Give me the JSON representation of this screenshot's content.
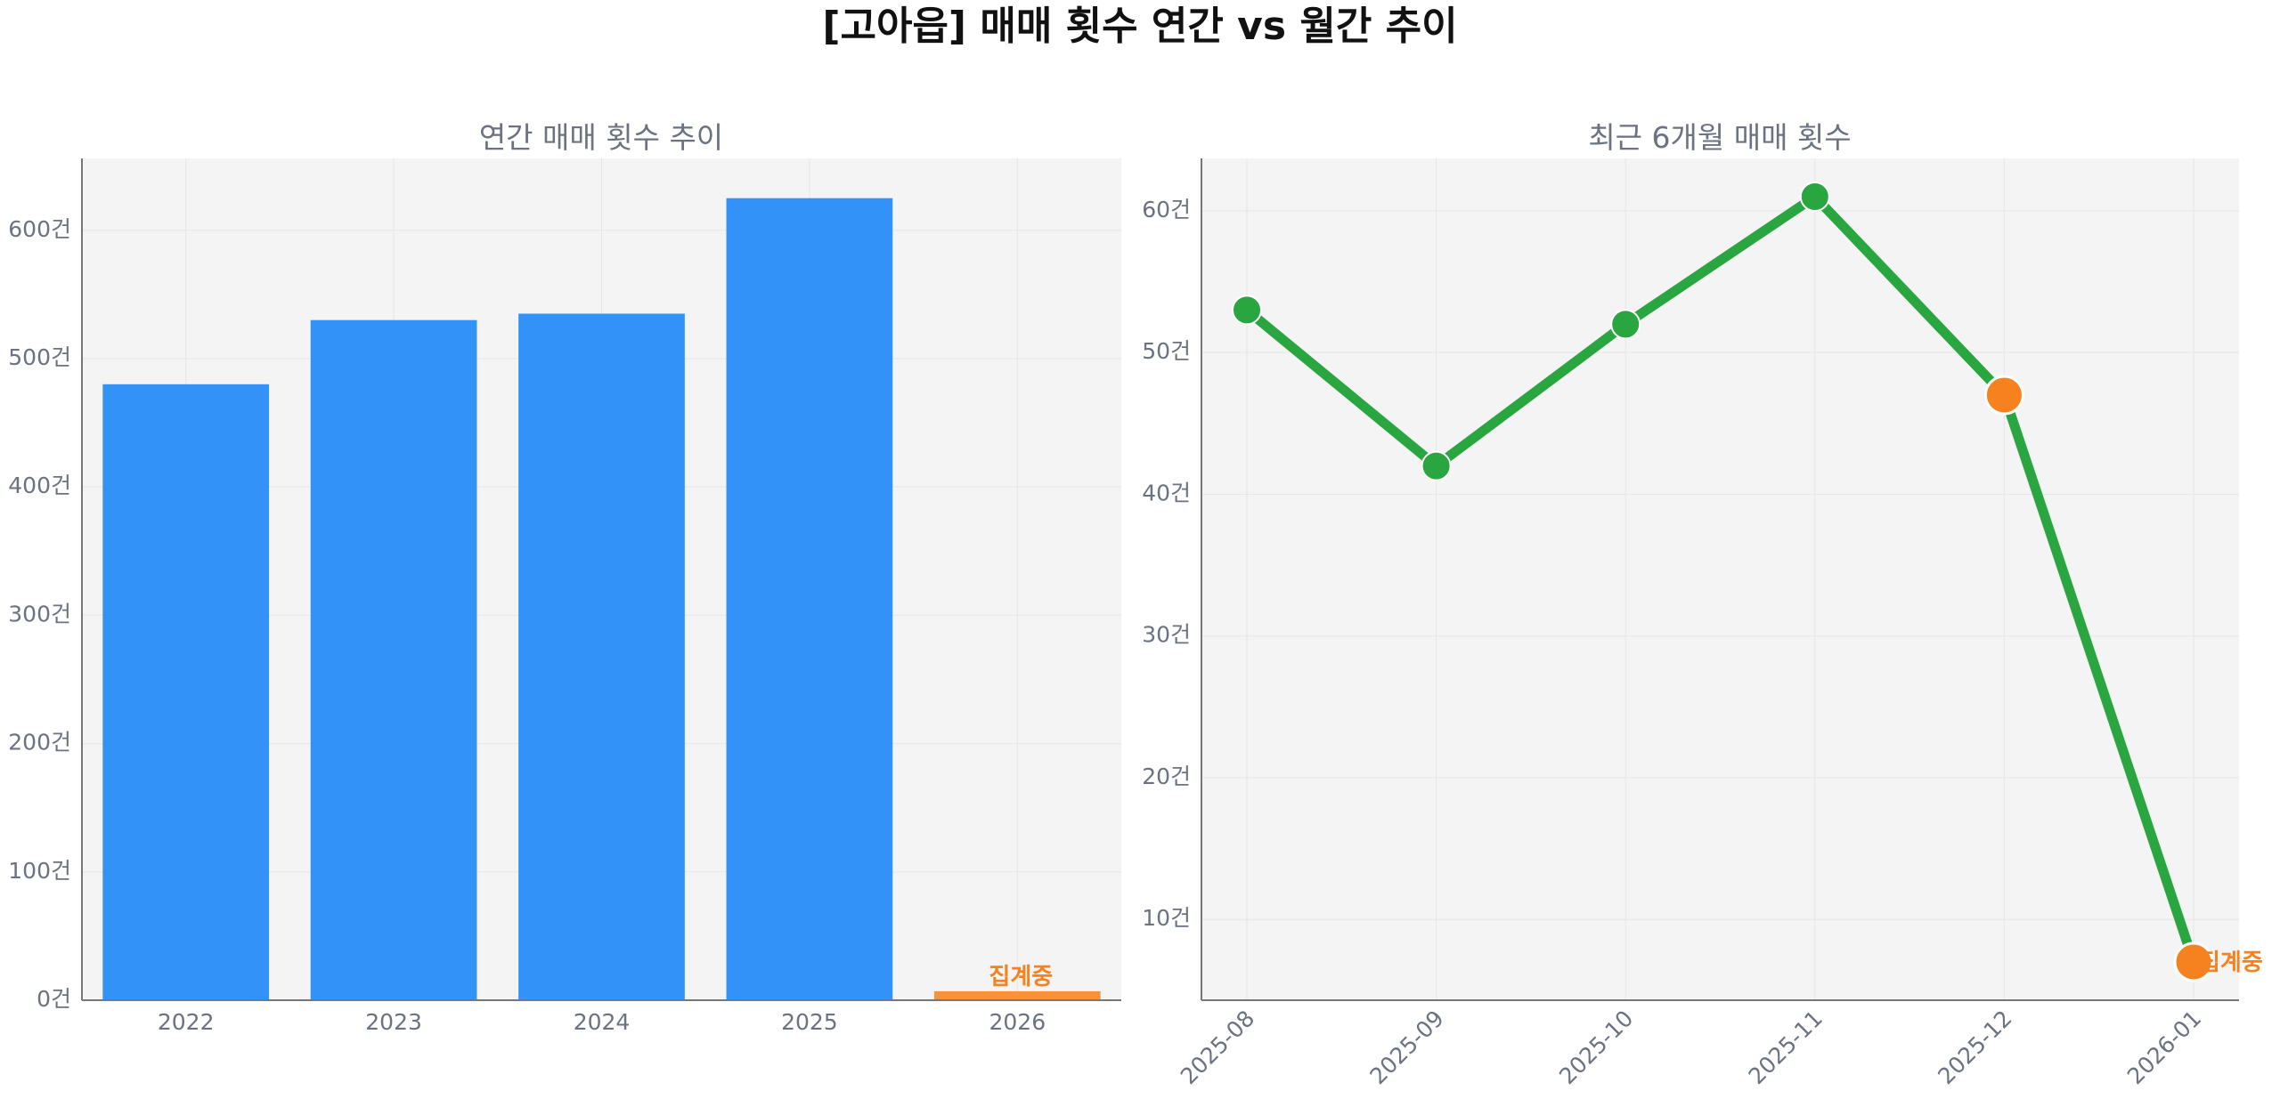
{
  "title": "[고아읍] 매매 횟수 연간 vs 월간 추이",
  "colors": {
    "bar": "#3292f8",
    "bar_partial": "#f5933e",
    "line": "#2aa640",
    "point_partial": "#f5821f",
    "note": "#f58220"
  },
  "chart_data": [
    {
      "type": "bar",
      "title": "연간 매매 횟수 추이",
      "categories": [
        "2022",
        "2023",
        "2024",
        "2025",
        "2026"
      ],
      "values": [
        480,
        530,
        535,
        625,
        7
      ],
      "partial_index": 4,
      "partial_label": "집계중",
      "ylim": [
        0,
        656
      ],
      "yticks": [
        0,
        100,
        200,
        300,
        400,
        500,
        600
      ],
      "ytick_labels": [
        "0건",
        "100건",
        "200건",
        "300건",
        "400건",
        "500건",
        "600건"
      ],
      "grid": true
    },
    {
      "type": "line",
      "title": "최근 6개월 매매 횟수",
      "x": [
        "2025-08",
        "2025-09",
        "2025-10",
        "2025-11",
        "2025-12",
        "2026-01"
      ],
      "values": [
        53,
        42,
        52,
        61,
        47,
        7
      ],
      "highlight_indices": [
        4,
        5
      ],
      "partial_index": 5,
      "partial_label": "집계중",
      "ylim": [
        4.3,
        63.7
      ],
      "yticks": [
        10,
        20,
        30,
        40,
        50,
        60
      ],
      "ytick_labels": [
        "10건",
        "20건",
        "30건",
        "40건",
        "50건",
        "60건"
      ],
      "grid": true
    }
  ]
}
